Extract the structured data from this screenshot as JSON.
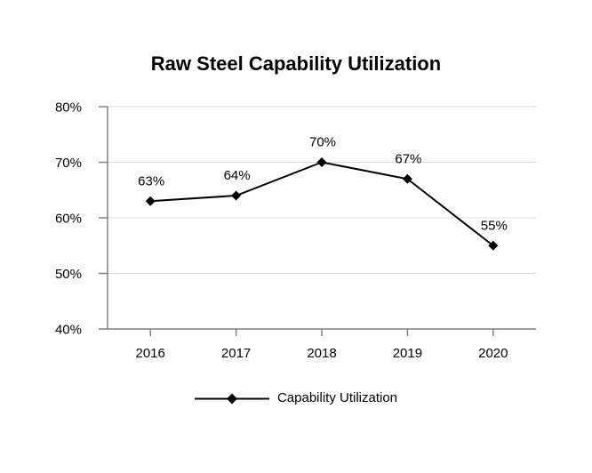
{
  "chart_data": {
    "type": "line",
    "title": "Raw Steel Capability Utilization",
    "categories": [
      "2016",
      "2017",
      "2018",
      "2019",
      "2020"
    ],
    "series": [
      {
        "name": "Capability Utilization",
        "values": [
          63,
          64,
          70,
          67,
          55
        ],
        "data_labels": [
          "63%",
          "64%",
          "70%",
          "67%",
          "55%"
        ],
        "marker": "diamond"
      }
    ],
    "xlabel": "",
    "ylabel": "",
    "ylim": [
      40,
      80
    ],
    "ytick_step": 10,
    "ytick_labels": [
      "40%",
      "50%",
      "60%",
      "70%",
      "80%"
    ],
    "grid": true,
    "legend_position": "bottom",
    "colors": {
      "series": "#000000",
      "axis": "#808080",
      "gridline": "#d9d9d9",
      "text": "#000000",
      "background": "#ffffff"
    }
  }
}
